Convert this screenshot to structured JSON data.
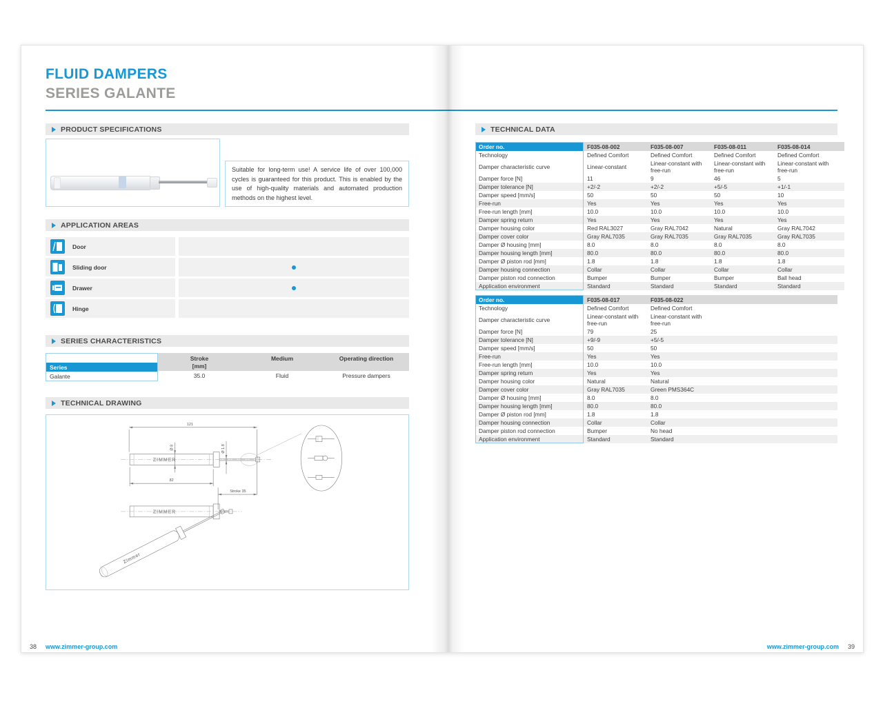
{
  "meta": {
    "accent_color": "#1798d4",
    "header_gray": "#d9d9d9",
    "row_alt_gray": "#efefef"
  },
  "header": {
    "title": "FLUID DAMPERS",
    "subtitle": "SERIES GALANTE"
  },
  "footer": {
    "left_page_number": "38",
    "right_page_number": "39",
    "site_url": "www.zimmer-group.com"
  },
  "sections": {
    "product_specifications": {
      "label": "PRODUCT SPECIFICATIONS",
      "description": "Suitable for long-term use! A service life of over 100,000 cycles is guaranteed for this product. This is enabled by the use of high-quality materials and automated production methods on the highest level."
    },
    "application_areas": {
      "label": "APPLICATION AREAS",
      "items": [
        {
          "label": "Door",
          "icon": "door-icon",
          "selected": false
        },
        {
          "label": "Sliding door",
          "icon": "sliding-door-icon",
          "selected": true
        },
        {
          "label": "Drawer",
          "icon": "drawer-icon",
          "selected": true
        },
        {
          "label": "Hinge",
          "icon": "hinge-icon",
          "selected": false
        }
      ]
    },
    "series_characteristics": {
      "label": "SERIES CHARACTERISTICS",
      "row_header": "Series",
      "columns": [
        {
          "line1": "Stroke",
          "line2": "[mm]"
        },
        {
          "line1": "Medium",
          "line2": ""
        },
        {
          "line1": "Operating direction",
          "line2": ""
        }
      ],
      "rows": [
        {
          "series": "Galante",
          "values": [
            "35.0",
            "Fluid",
            "Pressure dampers"
          ]
        }
      ]
    },
    "technical_drawing": {
      "label": "TECHNICAL DRAWING",
      "brand": "ZIMMER",
      "dims": {
        "total_length": "121",
        "body_length": "82",
        "stroke": "Stroke 35",
        "housing_diameter": "Ø 8",
        "rod_diameter": "Ø 1.8"
      }
    },
    "technical_data": {
      "label": "TECHNICAL DATA",
      "tables": [
        {
          "header_label": "Order no.",
          "columns": [
            "F035-08-002",
            "F035-08-007",
            "F035-08-011",
            "F035-08-014"
          ],
          "rows": [
            {
              "label": "Technology",
              "values": [
                "Defined Comfort",
                "Defined Comfort",
                "Defined Comfort",
                "Defined Comfort"
              ]
            },
            {
              "label": "Damper characteristic curve",
              "values": [
                "Linear-constant",
                "Linear-constant with free-run",
                "Linear-constant with free-run",
                "Linear-constant with free-run"
              ]
            },
            {
              "label": "Damper force [N]",
              "values": [
                "11",
                "9",
                "46",
                "5"
              ]
            },
            {
              "label": "Damper tolerance [N]",
              "values": [
                "+2/-2",
                "+2/-2",
                "+5/-5",
                "+1/-1"
              ]
            },
            {
              "label": "Damper speed [mm/s]",
              "values": [
                "50",
                "50",
                "50",
                "10"
              ]
            },
            {
              "label": "Free-run",
              "values": [
                "Yes",
                "Yes",
                "Yes",
                "Yes"
              ]
            },
            {
              "label": "Free-run length [mm]",
              "values": [
                "10.0",
                "10.0",
                "10.0",
                "10.0"
              ]
            },
            {
              "label": "Damper spring return",
              "values": [
                "Yes",
                "Yes",
                "Yes",
                "Yes"
              ]
            },
            {
              "label": "Damper housing color",
              "values": [
                "Red RAL3027",
                "Gray RAL7042",
                "Natural",
                "Gray RAL7042"
              ]
            },
            {
              "label": "Damper cover color",
              "values": [
                "Gray RAL7035",
                "Gray RAL7035",
                "Gray RAL7035",
                "Gray RAL7035"
              ]
            },
            {
              "label": "Damper Ø housing [mm]",
              "values": [
                "8.0",
                "8.0",
                "8.0",
                "8.0"
              ]
            },
            {
              "label": "Damper housing length [mm]",
              "values": [
                "80.0",
                "80.0",
                "80.0",
                "80.0"
              ]
            },
            {
              "label": "Damper Ø piston rod [mm]",
              "values": [
                "1.8",
                "1.8",
                "1.8",
                "1.8"
              ]
            },
            {
              "label": "Damper housing connection",
              "values": [
                "Collar",
                "Collar",
                "Collar",
                "Collar"
              ]
            },
            {
              "label": "Damper piston rod connection",
              "values": [
                "Bumper",
                "Bumper",
                "Bumper",
                "Ball head"
              ]
            },
            {
              "label": "Application environment",
              "values": [
                "Standard",
                "Standard",
                "Standard",
                "Standard"
              ]
            }
          ]
        },
        {
          "header_label": "Order no.",
          "columns": [
            "F035-08-017",
            "F035-08-022"
          ],
          "rows": [
            {
              "label": "Technology",
              "values": [
                "Defined Comfort",
                "Defined Comfort"
              ]
            },
            {
              "label": "Damper characteristic curve",
              "values": [
                "Linear-constant with free-run",
                "Linear-constant with free-run"
              ]
            },
            {
              "label": "Damper force [N]",
              "values": [
                "79",
                "25"
              ]
            },
            {
              "label": "Damper tolerance [N]",
              "values": [
                "+9/-9",
                "+5/-5"
              ]
            },
            {
              "label": "Damper speed [mm/s]",
              "values": [
                "50",
                "50"
              ]
            },
            {
              "label": "Free-run",
              "values": [
                "Yes",
                "Yes"
              ]
            },
            {
              "label": "Free-run length [mm]",
              "values": [
                "10.0",
                "10.0"
              ]
            },
            {
              "label": "Damper spring return",
              "values": [
                "Yes",
                "Yes"
              ]
            },
            {
              "label": "Damper housing color",
              "values": [
                "Natural",
                "Natural"
              ]
            },
            {
              "label": "Damper cover color",
              "values": [
                "Gray RAL7035",
                "Green PMS364C"
              ]
            },
            {
              "label": "Damper Ø housing [mm]",
              "values": [
                "8.0",
                "8.0"
              ]
            },
            {
              "label": "Damper housing length [mm]",
              "values": [
                "80.0",
                "80.0"
              ]
            },
            {
              "label": "Damper Ø piston rod [mm]",
              "values": [
                "1.8",
                "1.8"
              ]
            },
            {
              "label": "Damper housing connection",
              "values": [
                "Collar",
                "Collar"
              ]
            },
            {
              "label": "Damper piston rod connection",
              "values": [
                "Bumper",
                "No head"
              ]
            },
            {
              "label": "Application environment",
              "values": [
                "Standard",
                "Standard"
              ]
            }
          ]
        }
      ]
    }
  }
}
